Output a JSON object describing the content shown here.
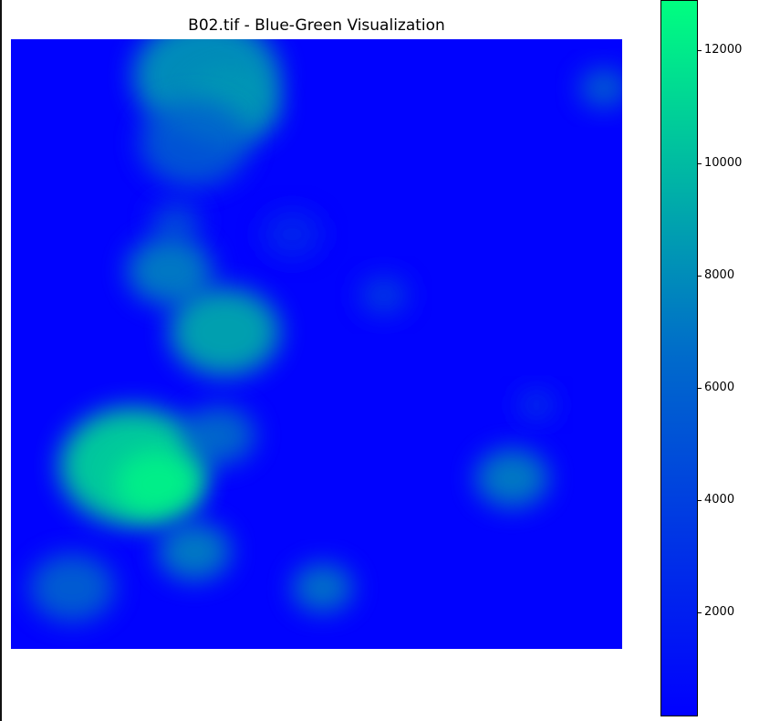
{
  "chart_data": {
    "type": "heatmap",
    "title": "B02.tif - Blue-Green Visualization",
    "colormap": "winter",
    "colors": {
      "low": "#0000ff",
      "mid": "#006acb",
      "high": "#00ff80",
      "background": "#ffffff"
    },
    "colorbar": {
      "min": 150,
      "max": 12900,
      "ticks": [
        {
          "value": 2000,
          "label": "2000"
        },
        {
          "value": 4000,
          "label": "4000"
        },
        {
          "value": 6000,
          "label": "6000"
        },
        {
          "value": 8000,
          "label": "8000"
        },
        {
          "value": 10000,
          "label": "10000"
        },
        {
          "value": 12000,
          "label": "12000"
        }
      ]
    },
    "baseline_value": 300,
    "features": [
      {
        "desc": "cloud top-left cluster",
        "cx": 0.32,
        "cy": 0.06,
        "r": 0.12,
        "value": 9000
      },
      {
        "desc": "cloud lobe",
        "cx": 0.36,
        "cy": 0.11,
        "r": 0.08,
        "value": 8500
      },
      {
        "desc": "cloud trail",
        "cx": 0.3,
        "cy": 0.17,
        "r": 0.09,
        "value": 6000
      },
      {
        "desc": "cloud small",
        "cx": 0.27,
        "cy": 0.3,
        "r": 0.04,
        "value": 5000
      },
      {
        "desc": "cloud mid-left",
        "cx": 0.26,
        "cy": 0.38,
        "r": 0.07,
        "value": 8000
      },
      {
        "desc": "cloud mid",
        "cx": 0.35,
        "cy": 0.48,
        "r": 0.09,
        "value": 10000
      },
      {
        "desc": "cloud lower-left large",
        "cx": 0.2,
        "cy": 0.7,
        "r": 0.12,
        "value": 12000
      },
      {
        "desc": "cloud lower-left core",
        "cx": 0.24,
        "cy": 0.73,
        "r": 0.07,
        "value": 12500
      },
      {
        "desc": "cloud right of large",
        "cx": 0.34,
        "cy": 0.65,
        "r": 0.06,
        "value": 7000
      },
      {
        "desc": "cloud bottom-left",
        "cx": 0.3,
        "cy": 0.84,
        "r": 0.06,
        "value": 8000
      },
      {
        "desc": "cloud bottom-far-left",
        "cx": 0.1,
        "cy": 0.9,
        "r": 0.07,
        "value": 6500
      },
      {
        "desc": "cloud bottom-center",
        "cx": 0.51,
        "cy": 0.9,
        "r": 0.05,
        "value": 7500
      },
      {
        "desc": "cloud right",
        "cx": 0.82,
        "cy": 0.72,
        "r": 0.06,
        "value": 8000
      },
      {
        "desc": "cloud top-right",
        "cx": 0.97,
        "cy": 0.08,
        "r": 0.04,
        "value": 6500
      },
      {
        "desc": "cloud faint center",
        "cx": 0.61,
        "cy": 0.42,
        "r": 0.04,
        "value": 4000
      },
      {
        "desc": "cloud faint",
        "cx": 0.86,
        "cy": 0.6,
        "r": 0.03,
        "value": 3500
      },
      {
        "desc": "haze patch",
        "cx": 0.46,
        "cy": 0.32,
        "r": 0.05,
        "value": 2500
      }
    ]
  }
}
